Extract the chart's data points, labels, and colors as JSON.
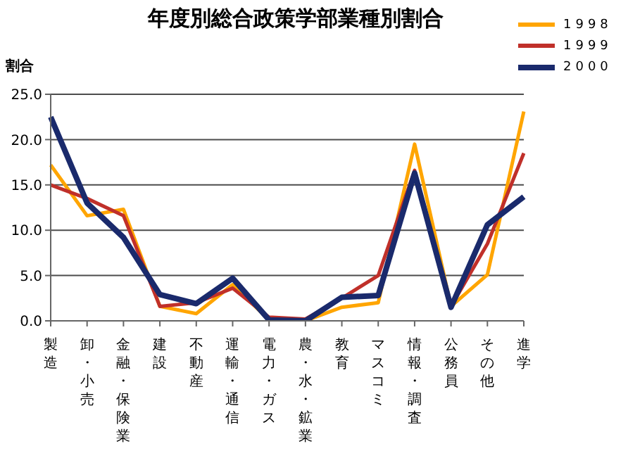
{
  "chart_data": {
    "type": "line",
    "title": "年度別総合政策学部業種別割合",
    "ylabel": "割合",
    "categories": [
      "製造",
      "卸・小売",
      "金融・保険業",
      "建設",
      "不動産",
      "運輸・通信",
      "電力・ガス",
      "農・水・鉱業",
      "教育",
      "マスコミ",
      "情報・調査",
      "公務員",
      "その他",
      "進学"
    ],
    "series": [
      {
        "name": "1998",
        "color": "#ffa500",
        "values": [
          17.2,
          11.6,
          12.3,
          1.6,
          0.8,
          4.0,
          0.1,
          0.0,
          1.5,
          2.0,
          19.5,
          1.6,
          5.1,
          23.1
        ]
      },
      {
        "name": "1999",
        "color": "#c0302a",
        "values": [
          15.0,
          13.5,
          11.6,
          1.6,
          2.0,
          3.6,
          0.4,
          0.2,
          2.5,
          5.0,
          16.6,
          1.6,
          8.5,
          18.5
        ]
      },
      {
        "name": "2000",
        "color": "#1a2a6c",
        "values": [
          22.5,
          13.0,
          9.2,
          2.9,
          1.9,
          4.7,
          0.1,
          0.0,
          2.6,
          2.8,
          16.3,
          1.5,
          10.6,
          13.7
        ]
      }
    ],
    "ylim": [
      0,
      25
    ],
    "yticks": [
      {
        "value": 0,
        "label": "0.0"
      },
      {
        "value": 5,
        "label": "5.0"
      },
      {
        "value": 10,
        "label": "10.0"
      },
      {
        "value": 15,
        "label": "15.0"
      },
      {
        "value": 20,
        "label": "20.0"
      },
      {
        "value": 25,
        "label": "25.0"
      }
    ],
    "grid": "y",
    "legend": "top right",
    "marker": "none",
    "line_style": "solid"
  }
}
